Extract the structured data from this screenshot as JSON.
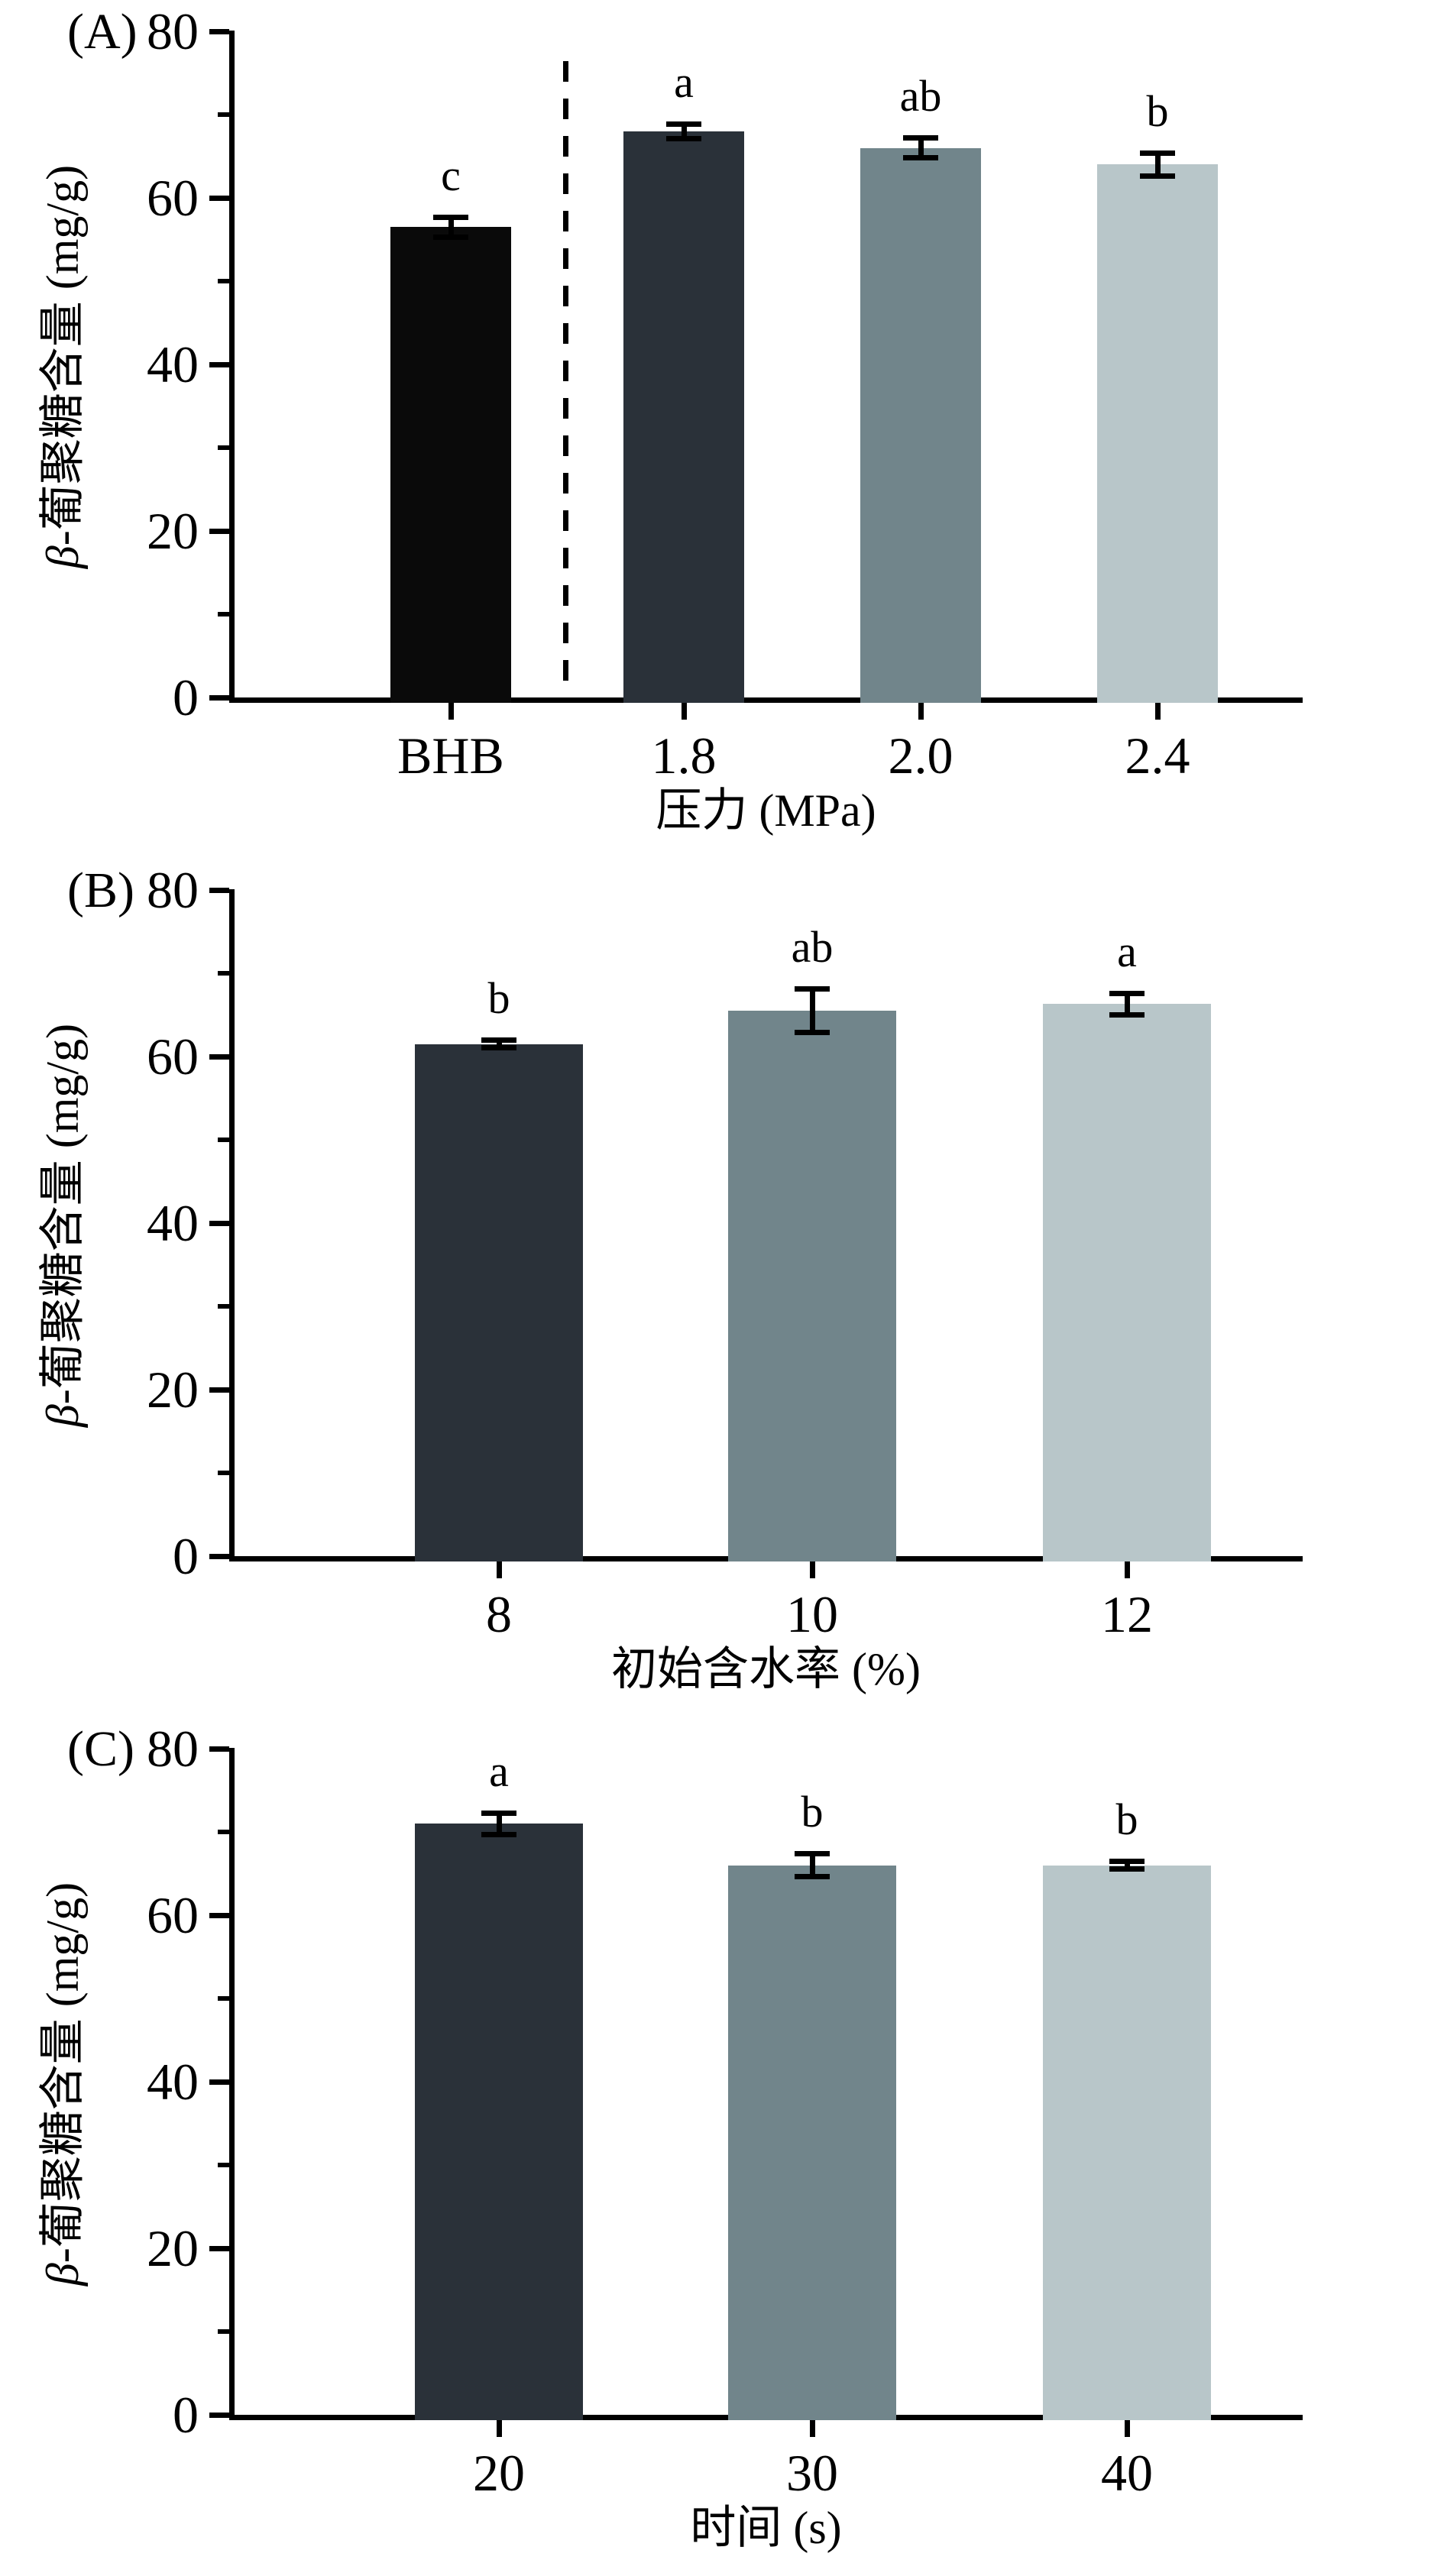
{
  "figure": {
    "background": "#ffffff",
    "unit": "mg/g"
  },
  "chart_data": [
    {
      "type": "bar",
      "panel_label": "(A)",
      "title": "",
      "xlabel": "压力 (MPa)",
      "ylabel": "β-葡聚糖含量 (mg/g)",
      "categories": [
        "BHB",
        "1.8",
        "2.0",
        "2.4"
      ],
      "values": [
        56.5,
        68.0,
        66.0,
        64.0
      ],
      "errors": [
        1.5,
        1.2,
        1.5,
        1.7
      ],
      "sig_letters": [
        "c",
        "a",
        "ab",
        "b"
      ],
      "bar_colors": [
        "#0a0a0a",
        "#2a3139",
        "#71858b",
        "#b8c6c9"
      ],
      "ylim": [
        0,
        80
      ],
      "ytick_major": [
        0,
        20,
        40,
        60,
        80
      ],
      "ytick_minor": [
        10,
        30,
        50,
        70
      ],
      "grid": "off",
      "legend": "none",
      "separator_after_index": 0
    },
    {
      "type": "bar",
      "panel_label": "(B)",
      "title": "",
      "xlabel": "初始含水率 (%)",
      "ylabel": "β-葡聚糖含量 (mg/g)",
      "categories": [
        "8",
        "10",
        "12"
      ],
      "values": [
        61.5,
        65.5,
        66.3
      ],
      "errors": [
        0.8,
        2.9,
        1.6
      ],
      "sig_letters": [
        "b",
        "ab",
        "a"
      ],
      "bar_colors": [
        "#2a3139",
        "#71858b",
        "#b8c6c9"
      ],
      "ylim": [
        0,
        80
      ],
      "ytick_major": [
        0,
        20,
        40,
        60,
        80
      ],
      "ytick_minor": [
        10,
        30,
        50,
        70
      ],
      "grid": "off",
      "legend": "none",
      "separator_after_index": null
    },
    {
      "type": "bar",
      "panel_label": "(C)",
      "title": "",
      "xlabel": "时间 (s)",
      "ylabel": "β-葡聚糖含量 (mg/g)",
      "categories": [
        "20",
        "30",
        "40"
      ],
      "values": [
        71.0,
        66.0,
        66.0
      ],
      "errors": [
        1.6,
        1.7,
        0.8
      ],
      "sig_letters": [
        "a",
        "b",
        "b"
      ],
      "bar_colors": [
        "#2a3139",
        "#71858b",
        "#b8c6c9"
      ],
      "ylim": [
        0,
        80
      ],
      "ytick_major": [
        0,
        20,
        40,
        60,
        80
      ],
      "ytick_minor": [
        10,
        30,
        50,
        70
      ],
      "grid": "off",
      "legend": "none",
      "separator_after_index": null
    }
  ]
}
